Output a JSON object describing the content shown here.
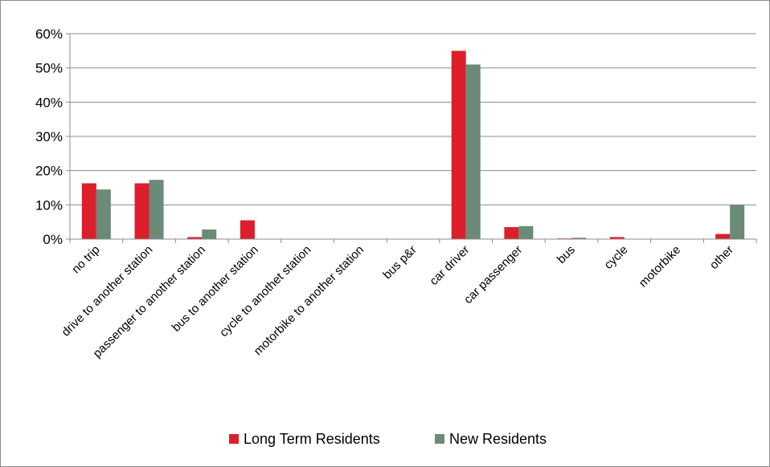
{
  "chart_data": {
    "type": "bar",
    "title": "",
    "xlabel": "",
    "ylabel": "",
    "ylim": [
      0,
      60
    ],
    "y_tick_labels": [
      "0%",
      "10%",
      "20%",
      "30%",
      "40%",
      "50%",
      "60%"
    ],
    "y_ticks": [
      0,
      10,
      20,
      30,
      40,
      50,
      60
    ],
    "grid": true,
    "legend": "bottom",
    "categories": [
      "no trip",
      "drive to another station",
      "passenger to another station",
      "bus to another station",
      "cycle to anothet station",
      "motorbike to another station",
      "bus p&r",
      "car driver",
      "car passenger",
      "bus",
      "cycle",
      "motorbike",
      "other"
    ],
    "series": [
      {
        "name": "Long Term Residents",
        "color": "#dc1f2b",
        "values": [
          16.3,
          16.3,
          0.6,
          5.5,
          0,
          0,
          0,
          55.0,
          3.5,
          0.2,
          0.6,
          0,
          1.5
        ]
      },
      {
        "name": "New Residents",
        "color": "#6b8a78",
        "values": [
          14.5,
          17.3,
          2.8,
          0,
          0,
          0,
          0,
          51.0,
          3.8,
          0.4,
          0,
          0,
          10.0
        ]
      }
    ]
  }
}
